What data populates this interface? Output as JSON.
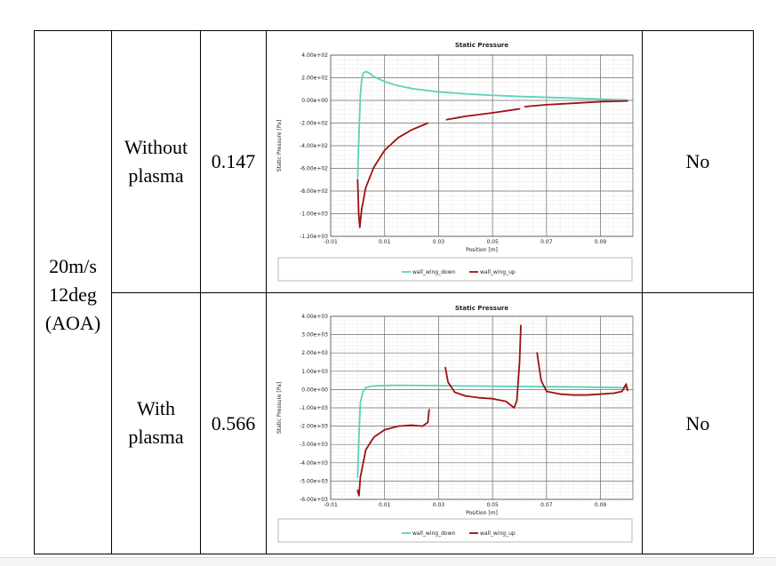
{
  "table": {
    "condition": {
      "line1": "20m/s",
      "line2": "12deg",
      "line3": "(AOA)"
    },
    "rows": [
      {
        "case_line1": "Without",
        "case_line2": "plasma",
        "value": "0.147",
        "result": "No"
      },
      {
        "case_line1": "With",
        "case_line2": "plasma",
        "value": "0.566",
        "result": "No"
      }
    ]
  },
  "colors": {
    "wall_wing_down": "#5ed0bd",
    "wall_wing_up": "#a01010"
  },
  "chart_data": [
    {
      "type": "line",
      "title": "Static Pressure",
      "xlabel": "Position [m]",
      "ylabel": "Static Pressure [Pa]",
      "xlim": [
        -0.01,
        0.102
      ],
      "ylim": [
        -1200,
        400
      ],
      "xticks": [
        -0.01,
        0.01,
        0.03,
        0.05,
        0.07,
        0.09
      ],
      "xtick_labels": [
        "-0.01",
        "0.01",
        "0.03",
        "0.05",
        "0.07",
        "0.09"
      ],
      "yticks": [
        400,
        200,
        0,
        -200,
        -400,
        -600,
        -800,
        -1000,
        -1200
      ],
      "ytick_labels": [
        "4.00e+02",
        "2.00e+02",
        "0.00e+00",
        "-2.00e+02",
        "-4.00e+02",
        "-6.00e+02",
        "-8.00e+02",
        "-1.00e+03",
        "-1.20e+03"
      ],
      "legend_position": "bottom",
      "series": [
        {
          "name": "wall_wing_down",
          "segments": [
            [
              [
                0.0,
                -680
              ],
              [
                0.0005,
                -300
              ],
              [
                0.001,
                50
              ],
              [
                0.0015,
                180
              ],
              [
                0.002,
                240
              ],
              [
                0.003,
                255
              ],
              [
                0.004,
                245
              ],
              [
                0.006,
                210
              ],
              [
                0.01,
                165
              ],
              [
                0.015,
                130
              ],
              [
                0.02,
                105
              ],
              [
                0.03,
                75
              ],
              [
                0.04,
                58
              ],
              [
                0.05,
                45
              ],
              [
                0.06,
                35
              ],
              [
                0.07,
                27
              ],
              [
                0.08,
                20
              ],
              [
                0.09,
                12
              ],
              [
                0.1,
                4
              ]
            ]
          ]
        },
        {
          "name": "wall_wing_up",
          "segments": [
            [
              [
                0.0,
                -700
              ],
              [
                0.0004,
                -1000
              ],
              [
                0.0008,
                -1120
              ],
              [
                0.0015,
                -960
              ],
              [
                0.003,
                -770
              ],
              [
                0.006,
                -590
              ],
              [
                0.01,
                -440
              ],
              [
                0.015,
                -330
              ],
              [
                0.02,
                -260
              ],
              [
                0.026,
                -200
              ]
            ],
            [
              [
                0.033,
                -170
              ],
              [
                0.04,
                -140
              ],
              [
                0.05,
                -110
              ],
              [
                0.06,
                -75
              ]
            ],
            [
              [
                0.062,
                -55
              ],
              [
                0.07,
                -38
              ],
              [
                0.08,
                -25
              ],
              [
                0.09,
                -12
              ],
              [
                0.1,
                -5
              ]
            ]
          ]
        }
      ]
    },
    {
      "type": "line",
      "title": "Static Pressure",
      "xlabel": "Position [m]",
      "ylabel": "Static Pressure [Pa]",
      "xlim": [
        -0.01,
        0.102
      ],
      "ylim": [
        -6000,
        4000
      ],
      "xticks": [
        -0.01,
        0.01,
        0.03,
        0.05,
        0.07,
        0.09
      ],
      "xtick_labels": [
        "-0.01",
        "0.01",
        "0.03",
        "0.05",
        "0.07",
        "0.09"
      ],
      "yticks": [
        4000,
        3000,
        2000,
        1000,
        0,
        -1000,
        -2000,
        -3000,
        -4000,
        -5000,
        -6000
      ],
      "ytick_labels": [
        "4.00e+03",
        "3.00e+03",
        "2.00e+03",
        "1.00e+03",
        "0.00e+00",
        "-1.00e+03",
        "-2.00e+03",
        "-3.00e+03",
        "-4.00e+03",
        "-5.00e+03",
        "-6.00e+03"
      ],
      "legend_position": "bottom",
      "series": [
        {
          "name": "wall_wing_down",
          "segments": [
            [
              [
                0.0,
                -4800
              ],
              [
                0.0005,
                -2500
              ],
              [
                0.001,
                -700
              ],
              [
                0.002,
                -100
              ],
              [
                0.003,
                100
              ],
              [
                0.005,
                180
              ],
              [
                0.008,
                210
              ],
              [
                0.015,
                230
              ],
              [
                0.025,
                220
              ],
              [
                0.035,
                200
              ],
              [
                0.05,
                180
              ],
              [
                0.065,
                160
              ],
              [
                0.08,
                140
              ],
              [
                0.09,
                120
              ],
              [
                0.1,
                100
              ]
            ]
          ]
        },
        {
          "name": "wall_wing_up",
          "segments": [
            [
              [
                0.0,
                -5500
              ],
              [
                0.0005,
                -5800
              ],
              [
                0.001,
                -4800
              ],
              [
                0.003,
                -3300
              ],
              [
                0.006,
                -2600
              ],
              [
                0.01,
                -2200
              ],
              [
                0.015,
                -2000
              ],
              [
                0.02,
                -1950
              ],
              [
                0.024,
                -2000
              ],
              [
                0.026,
                -1800
              ],
              [
                0.0265,
                -1100
              ]
            ],
            [
              [
                0.0325,
                1200
              ],
              [
                0.0335,
                400
              ],
              [
                0.036,
                -150
              ],
              [
                0.04,
                -350
              ],
              [
                0.045,
                -450
              ],
              [
                0.05,
                -500
              ],
              [
                0.055,
                -650
              ],
              [
                0.058,
                -1000
              ],
              [
                0.059,
                -600
              ],
              [
                0.06,
                1500
              ],
              [
                0.0605,
                3500
              ]
            ],
            [
              [
                0.0665,
                2000
              ],
              [
                0.068,
                500
              ],
              [
                0.07,
                -100
              ],
              [
                0.075,
                -250
              ],
              [
                0.08,
                -300
              ],
              [
                0.085,
                -300
              ],
              [
                0.09,
                -250
              ],
              [
                0.095,
                -200
              ],
              [
                0.098,
                -100
              ],
              [
                0.0995,
                300
              ],
              [
                0.1,
                -50
              ]
            ]
          ]
        }
      ]
    }
  ]
}
